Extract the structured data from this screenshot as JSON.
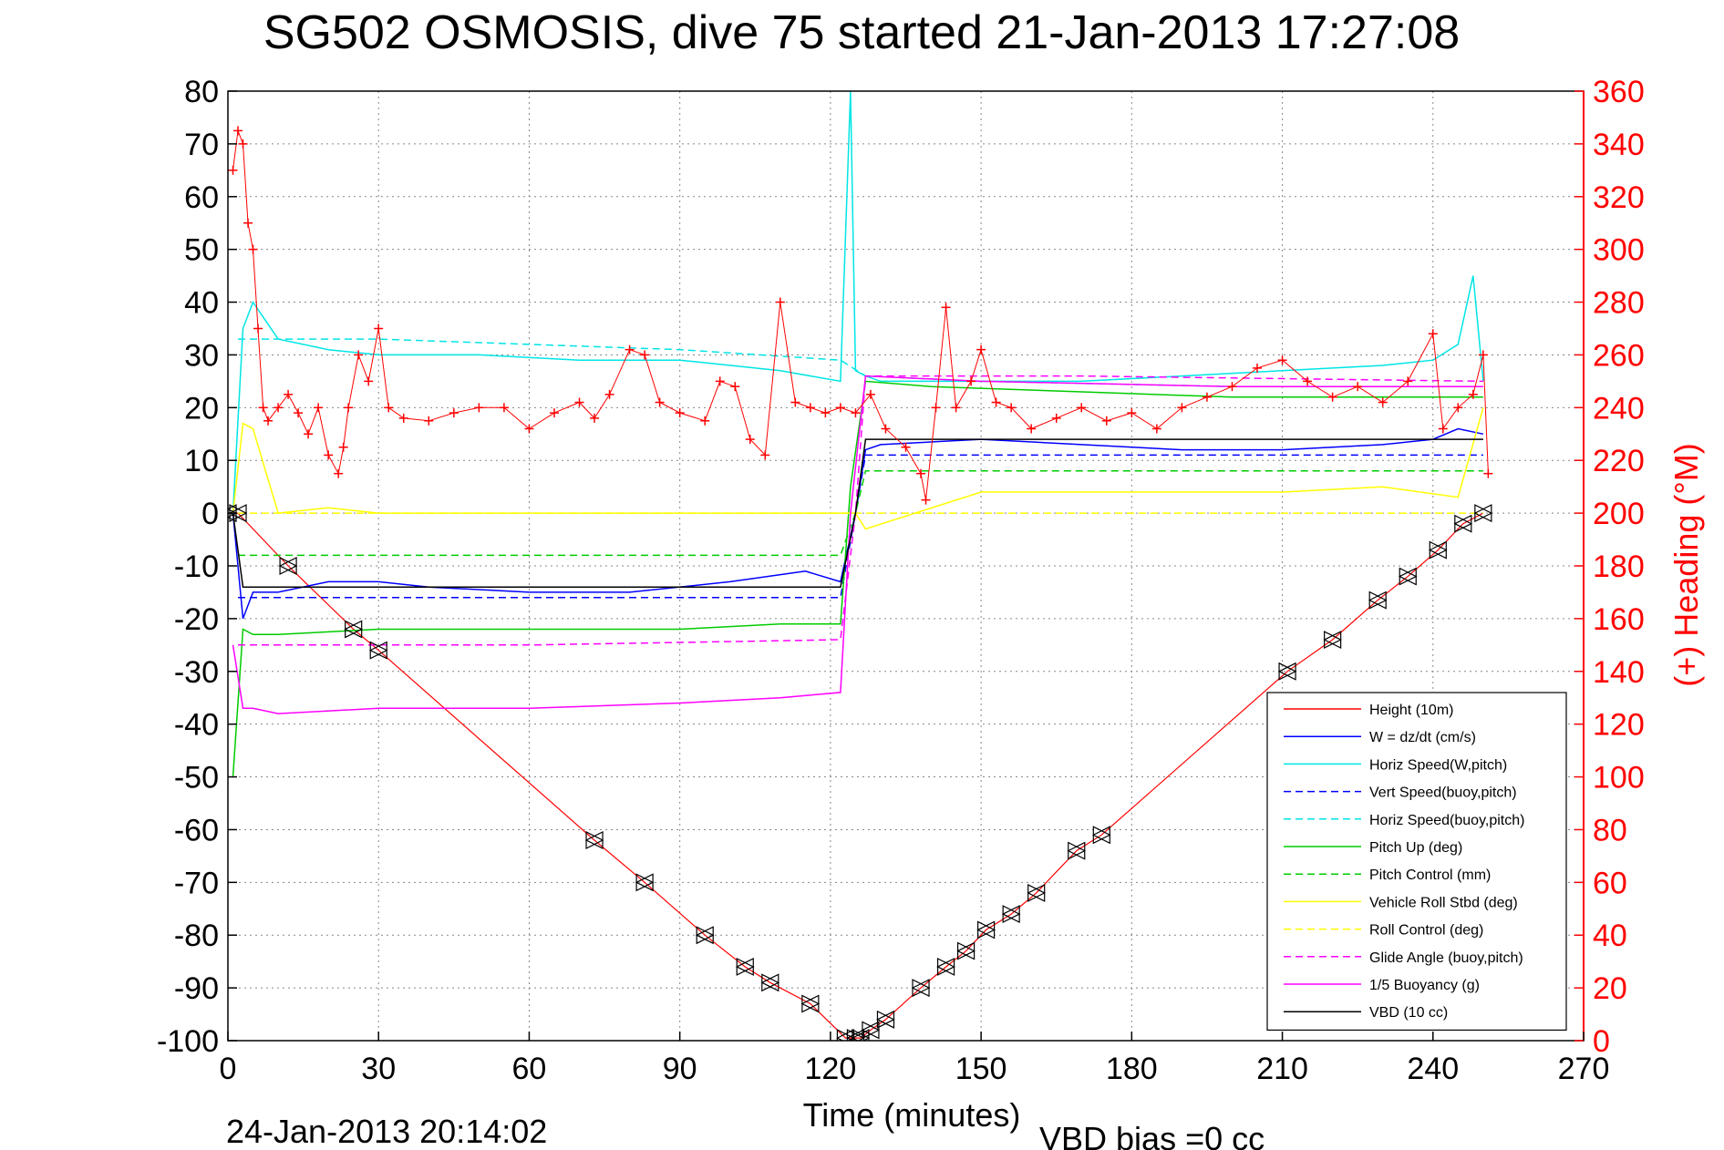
{
  "chart_data": {
    "type": "line",
    "title": "SG502 OSMOSIS, dive 75 started 21-Jan-2013 17:27:08",
    "xlabel": "Time (minutes)",
    "ylabel": "",
    "ylabel_right": "(+) Heading (°M)",
    "xlim": [
      0,
      270
    ],
    "ylim": [
      -100,
      80
    ],
    "ylim_right": [
      0,
      360
    ],
    "x_ticks": [
      "0",
      "30",
      "60",
      "90",
      "120",
      "150",
      "180",
      "210",
      "240",
      "270"
    ],
    "y_ticks": [
      "80",
      "70",
      "60",
      "50",
      "40",
      "30",
      "20",
      "10",
      "0",
      "-10",
      "-20",
      "-30",
      "-40",
      "-50",
      "-60",
      "-70",
      "-80",
      "-90",
      "-100"
    ],
    "y_ticks_right": [
      "360",
      "340",
      "320",
      "300",
      "280",
      "260",
      "240",
      "220",
      "200",
      "180",
      "160",
      "140",
      "120",
      "100",
      "80",
      "60",
      "40",
      "20",
      "0"
    ],
    "grid": true,
    "legend_position": "bottom-right",
    "footer_left": "24-Jan-2013 20:14:02",
    "footer_right": "VBD bias =0 cc",
    "series": [
      {
        "name": "Height (10m)",
        "color": "#ff0000",
        "dash": "solid",
        "x": [
          0,
          2,
          12,
          25,
          30,
          73,
          83,
          95,
          103,
          108,
          116,
          123,
          125,
          126,
          128,
          131,
          138,
          143,
          147,
          151,
          156,
          161,
          169,
          174,
          211,
          220,
          229,
          235,
          241,
          246,
          250
        ],
        "values": [
          0,
          0,
          -10,
          -22,
          -26,
          -62,
          -70,
          -80,
          -86,
          -89,
          -93,
          -99.5,
          -99.5,
          -99.5,
          -98,
          -96,
          -90,
          -86,
          -83,
          -79,
          -76,
          -72,
          -64,
          -61,
          -30,
          -24,
          -16.5,
          -12,
          -7,
          -2,
          0
        ]
      },
      {
        "name": "W = dz/dt (cm/s)",
        "color": "#0000ff",
        "dash": "solid",
        "x": [
          1,
          3,
          5,
          10,
          20,
          30,
          40,
          60,
          80,
          100,
          115,
          122,
          125,
          127,
          130,
          150,
          170,
          190,
          210,
          230,
          240,
          245,
          250
        ],
        "values": [
          0,
          -20,
          -15,
          -15,
          -13,
          -13,
          -14,
          -15,
          -15,
          -13,
          -11,
          -13,
          0,
          12,
          13,
          14,
          13,
          12,
          12,
          13,
          14,
          16,
          15
        ]
      },
      {
        "name": "Horiz Speed(W,pitch)",
        "color": "#00e5e5",
        "dash": "solid",
        "x": [
          1,
          3,
          5,
          10,
          20,
          30,
          50,
          70,
          90,
          110,
          122,
          124,
          125,
          127,
          130,
          150,
          170,
          190,
          210,
          230,
          240,
          245,
          248,
          250
        ],
        "values": [
          0,
          35,
          40,
          33,
          31,
          30,
          30,
          29,
          29,
          27,
          25,
          80,
          27,
          26,
          25,
          25,
          25,
          26,
          27,
          28,
          29,
          32,
          45,
          25
        ]
      },
      {
        "name": "Vert Speed(buoy,pitch)",
        "color": "#0000ff",
        "dash": "dashed",
        "x": [
          2,
          5,
          30,
          60,
          90,
          122,
          125,
          127,
          150,
          200,
          250
        ],
        "values": [
          -16,
          -16,
          -16,
          -16,
          -16,
          -16,
          0,
          11,
          11,
          11,
          11
        ]
      },
      {
        "name": "Horiz Speed(buoy,pitch)",
        "color": "#00e5e5",
        "dash": "dashed",
        "x": [
          2,
          30,
          60,
          90,
          122,
          127,
          150,
          200,
          250
        ],
        "values": [
          33,
          33,
          32,
          31,
          29,
          26,
          25,
          24,
          24
        ]
      },
      {
        "name": "Pitch Up (deg)",
        "color": "#00cc00",
        "dash": "solid",
        "x": [
          1,
          3,
          5,
          10,
          30,
          60,
          90,
          110,
          122,
          124,
          127,
          140,
          170,
          200,
          230,
          250
        ],
        "values": [
          -50,
          -22,
          -23,
          -23,
          -22,
          -22,
          -22,
          -21,
          -21,
          5,
          25,
          24,
          23,
          22,
          22,
          22
        ]
      },
      {
        "name": "Pitch Control (mm)",
        "color": "#00cc00",
        "dash": "dashed",
        "x": [
          2,
          10,
          60,
          122,
          125,
          127,
          170,
          250
        ],
        "values": [
          -8,
          -8,
          -8,
          -8,
          0,
          8,
          8,
          8
        ]
      },
      {
        "name": "Vehicle Roll Stbd (deg)",
        "color": "#ffff00",
        "dash": "solid",
        "x": [
          1,
          3,
          5,
          10,
          20,
          30,
          60,
          90,
          122,
          125,
          127,
          150,
          180,
          210,
          230,
          245,
          250
        ],
        "values": [
          0,
          17,
          16,
          0,
          1,
          0,
          0,
          0,
          0,
          0,
          -3,
          4,
          4,
          4,
          5,
          3,
          20
        ]
      },
      {
        "name": "Roll Control (deg)",
        "color": "#ffff00",
        "dash": "dashed",
        "x": [
          2,
          10,
          20,
          60,
          95,
          122,
          125,
          127,
          150,
          180,
          230,
          250
        ],
        "values": [
          0,
          0,
          0,
          0,
          0,
          0,
          0,
          0,
          0,
          0,
          0,
          0
        ]
      },
      {
        "name": "Glide Angle (buoy,pitch)",
        "color": "#ff00ff",
        "dash": "dashed",
        "x": [
          2,
          10,
          60,
          122,
          125,
          127,
          170,
          250
        ],
        "values": [
          -25,
          -25,
          -25,
          -24,
          0,
          26,
          26,
          25
        ]
      },
      {
        "name": "1/5 Buoyancy (g)",
        "color": "#ff00ff",
        "dash": "solid",
        "x": [
          1,
          3,
          5,
          10,
          30,
          60,
          90,
          110,
          122,
          124,
          127,
          150,
          200,
          250
        ],
        "values": [
          -25,
          -37,
          -37,
          -38,
          -37,
          -37,
          -36,
          -35,
          -34,
          0,
          26,
          25,
          24,
          24
        ]
      },
      {
        "name": "VBD (10 cc)",
        "color": "#000000",
        "dash": "solid",
        "x": [
          1,
          3,
          5,
          122,
          125,
          127,
          250
        ],
        "values": [
          0,
          -14,
          -14,
          -14,
          0,
          14,
          14
        ]
      }
    ],
    "heading_markers": {
      "name": "(+) Heading (°M)",
      "color": "#ff0000",
      "marker": "+",
      "x": [
        1,
        2,
        3,
        4,
        5,
        6,
        7,
        8,
        10,
        12,
        14,
        16,
        18,
        20,
        22,
        23,
        24,
        26,
        28,
        30,
        32,
        35,
        40,
        45,
        50,
        55,
        60,
        65,
        70,
        73,
        76,
        80,
        83,
        86,
        90,
        95,
        98,
        101,
        104,
        107,
        110,
        113,
        116,
        119,
        122,
        125,
        128,
        131,
        135,
        138,
        139,
        141,
        143,
        145,
        148,
        150,
        153,
        156,
        160,
        165,
        170,
        175,
        180,
        185,
        190,
        195,
        200,
        205,
        210,
        215,
        220,
        225,
        230,
        235,
        240,
        242,
        245,
        248,
        250,
        251
      ],
      "values": [
        330,
        345,
        340,
        310,
        300,
        270,
        240,
        235,
        240,
        245,
        238,
        230,
        240,
        222,
        215,
        225,
        240,
        260,
        250,
        270,
        240,
        236,
        235,
        238,
        240,
        240,
        232,
        238,
        242,
        236,
        245,
        262,
        260,
        242,
        238,
        235,
        250,
        248,
        228,
        222,
        280,
        242,
        240,
        238,
        240,
        238,
        245,
        232,
        225,
        215,
        205,
        240,
        278,
        240,
        250,
        262,
        242,
        240,
        232,
        236,
        240,
        235,
        238,
        232,
        240,
        244,
        248,
        255,
        258,
        250,
        244,
        248,
        242,
        250,
        268,
        232,
        240,
        245,
        260,
        215
      ]
    },
    "vbd_bias": "0 cc"
  }
}
